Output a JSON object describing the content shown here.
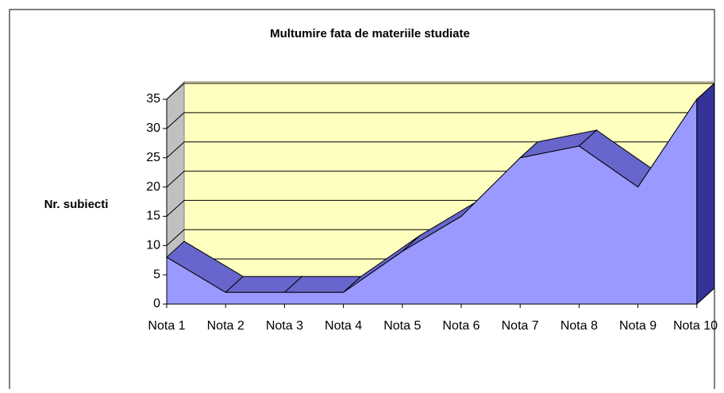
{
  "chart_data": {
    "type": "area3d",
    "title": "Multumire fata de materiile studiate",
    "y_label": "Nr. subiecti",
    "categories": [
      "Nota 1",
      "Nota 2",
      "Nota 3",
      "Nota 4",
      "Nota 5",
      "Nota 6",
      "Nota 7",
      "Nota 8",
      "Nota 9",
      "Nota 10"
    ],
    "values": [
      8,
      2,
      2,
      2,
      9,
      15,
      25,
      27,
      20,
      35
    ],
    "color": "#9999ff",
    "ylim": [
      0,
      35
    ],
    "yticks": [
      0,
      5,
      10,
      15,
      20,
      25,
      30,
      35
    ],
    "grid": true
  }
}
